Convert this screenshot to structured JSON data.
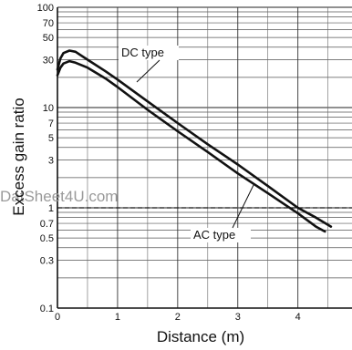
{
  "watermark": "DatSheet4U.com",
  "chart_data": {
    "type": "line",
    "xlabel": "Distance (m)",
    "ylabel": "Excess gain ratio",
    "x_ticks": [
      "0",
      "1",
      "2",
      "3",
      "4"
    ],
    "y_ticks": [
      "100",
      "70",
      "50",
      "30",
      "10",
      "7",
      "5",
      "3",
      "1",
      "0.7",
      "0.5",
      "0.3",
      "0.1"
    ],
    "xlim": [
      0,
      4.9
    ],
    "ylim": [
      0.1,
      100
    ],
    "y_scale": "log",
    "grid": true,
    "reference_line": {
      "y": 1,
      "style": "dashed"
    },
    "series": [
      {
        "name": "DC type",
        "x": [
          0,
          0.05,
          0.1,
          0.2,
          0.3,
          0.5,
          0.8,
          1.0,
          1.5,
          2.0,
          2.5,
          3.0,
          3.5,
          4.0,
          4.3,
          4.55
        ],
        "y": [
          24,
          31,
          35,
          37,
          36,
          30,
          23,
          19,
          11.5,
          7.0,
          4.3,
          2.7,
          1.65,
          1.0,
          0.8,
          0.65
        ]
      },
      {
        "name": "AC type",
        "x": [
          0,
          0.05,
          0.1,
          0.2,
          0.3,
          0.5,
          0.8,
          1.0,
          1.5,
          2.0,
          2.5,
          3.0,
          3.5,
          4.0,
          4.3,
          4.45
        ],
        "y": [
          21,
          25,
          27.5,
          29,
          28,
          25,
          19.5,
          16,
          9.5,
          5.8,
          3.6,
          2.2,
          1.4,
          0.88,
          0.65,
          0.58
        ]
      }
    ],
    "annotations": [
      {
        "text": "DC type",
        "series": "DC type"
      },
      {
        "text": "AC type",
        "series": "AC type"
      }
    ]
  }
}
